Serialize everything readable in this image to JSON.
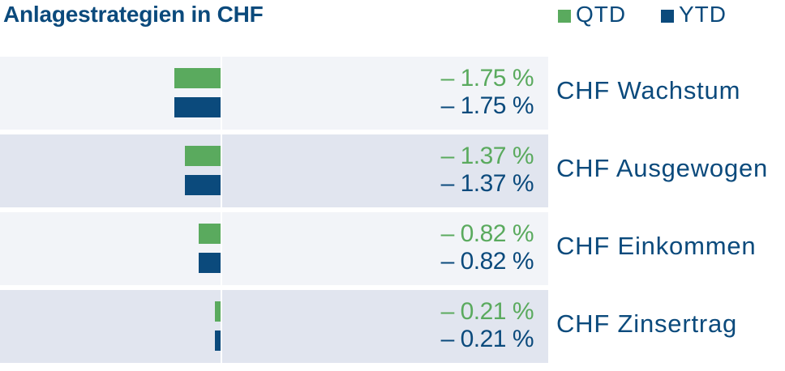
{
  "title": "Anlagestrategien in CHF",
  "colors": {
    "qtd": "#5aaa5e",
    "ytd": "#0b4a7c",
    "row_light": "#f2f4f8",
    "row_dark": "#e1e5ef",
    "text": "#0b4a7c"
  },
  "chart_data": {
    "type": "bar",
    "orientation": "horizontal",
    "categories": [
      "CHF Wachstum",
      "CHF Ausgewogen",
      "CHF Einkommen",
      "CHF Zinsertrag"
    ],
    "series": [
      {
        "name": "QTD",
        "values": [
          -1.75,
          -1.37,
          -0.82,
          -0.21
        ],
        "labels": [
          "– 1.75 %",
          "– 1.37 %",
          "– 0.82 %",
          "– 0.21 %"
        ]
      },
      {
        "name": "YTD",
        "values": [
          -1.75,
          -1.37,
          -0.82,
          -0.21
        ],
        "labels": [
          "– 1.75 %",
          "– 1.37 %",
          "– 0.82 %",
          "– 0.21 %"
        ]
      }
    ],
    "xlim": [
      -8.4,
      0
    ],
    "legend_position": "top-right"
  }
}
